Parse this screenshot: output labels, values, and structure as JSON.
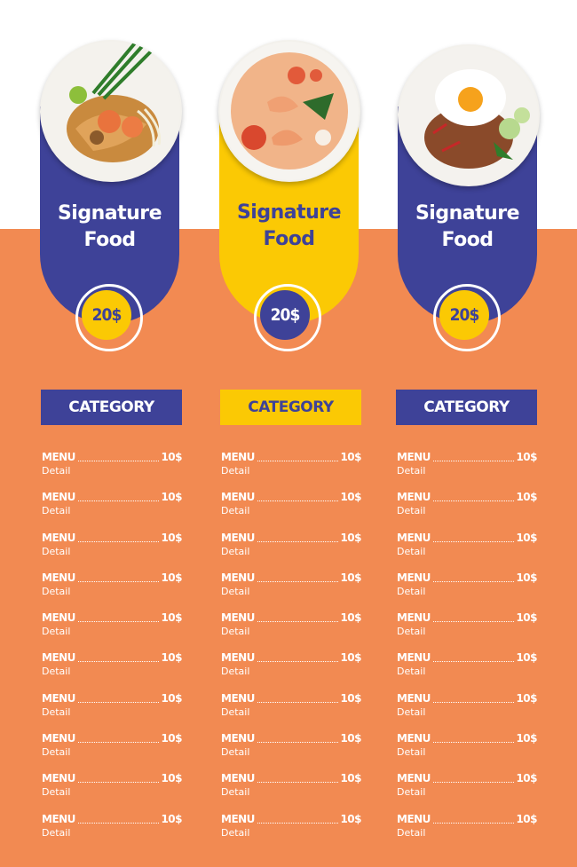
{
  "colors": {
    "orange": "#f28a52",
    "blue": "#3e4298",
    "yellow": "#fbc904",
    "white": "#ffffff"
  },
  "columns": [
    {
      "dish_icon": "pad-thai-icon",
      "card_color": "blue",
      "signature_title": "Signature",
      "signature_subtitle": "Food",
      "price": "20$",
      "category": "CATEGORY",
      "items": [
        {
          "menu": "MENU",
          "price": "10$",
          "detail": "Detail"
        },
        {
          "menu": "MENU",
          "price": "10$",
          "detail": "Detail"
        },
        {
          "menu": "MENU",
          "price": "10$",
          "detail": "Detail"
        },
        {
          "menu": "MENU",
          "price": "10$",
          "detail": "Detail"
        },
        {
          "menu": "MENU",
          "price": "10$",
          "detail": "Detail"
        },
        {
          "menu": "MENU",
          "price": "10$",
          "detail": "Detail"
        },
        {
          "menu": "MENU",
          "price": "10$",
          "detail": "Detail"
        },
        {
          "menu": "MENU",
          "price": "10$",
          "detail": "Detail"
        },
        {
          "menu": "MENU",
          "price": "10$",
          "detail": "Detail"
        },
        {
          "menu": "MENU",
          "price": "10$",
          "detail": "Detail"
        }
      ]
    },
    {
      "dish_icon": "tom-yum-soup-icon",
      "card_color": "yellow",
      "signature_title": "Signature",
      "signature_subtitle": "Food",
      "price": "20$",
      "category": "CATEGORY",
      "items": [
        {
          "menu": "MENU",
          "price": "10$",
          "detail": "Detail"
        },
        {
          "menu": "MENU",
          "price": "10$",
          "detail": "Detail"
        },
        {
          "menu": "MENU",
          "price": "10$",
          "detail": "Detail"
        },
        {
          "menu": "MENU",
          "price": "10$",
          "detail": "Detail"
        },
        {
          "menu": "MENU",
          "price": "10$",
          "detail": "Detail"
        },
        {
          "menu": "MENU",
          "price": "10$",
          "detail": "Detail"
        },
        {
          "menu": "MENU",
          "price": "10$",
          "detail": "Detail"
        },
        {
          "menu": "MENU",
          "price": "10$",
          "detail": "Detail"
        },
        {
          "menu": "MENU",
          "price": "10$",
          "detail": "Detail"
        },
        {
          "menu": "MENU",
          "price": "10$",
          "detail": "Detail"
        }
      ]
    },
    {
      "dish_icon": "basil-rice-fried-egg-icon",
      "card_color": "blue",
      "signature_title": "Signature",
      "signature_subtitle": "Food",
      "price": "20$",
      "category": "CATEGORY",
      "items": [
        {
          "menu": "MENU",
          "price": "10$",
          "detail": "Detail"
        },
        {
          "menu": "MENU",
          "price": "10$",
          "detail": "Detail"
        },
        {
          "menu": "MENU",
          "price": "10$",
          "detail": "Detail"
        },
        {
          "menu": "MENU",
          "price": "10$",
          "detail": "Detail"
        },
        {
          "menu": "MENU",
          "price": "10$",
          "detail": "Detail"
        },
        {
          "menu": "MENU",
          "price": "10$",
          "detail": "Detail"
        },
        {
          "menu": "MENU",
          "price": "10$",
          "detail": "Detail"
        },
        {
          "menu": "MENU",
          "price": "10$",
          "detail": "Detail"
        },
        {
          "menu": "MENU",
          "price": "10$",
          "detail": "Detail"
        },
        {
          "menu": "MENU",
          "price": "10$",
          "detail": "Detail"
        }
      ]
    }
  ]
}
